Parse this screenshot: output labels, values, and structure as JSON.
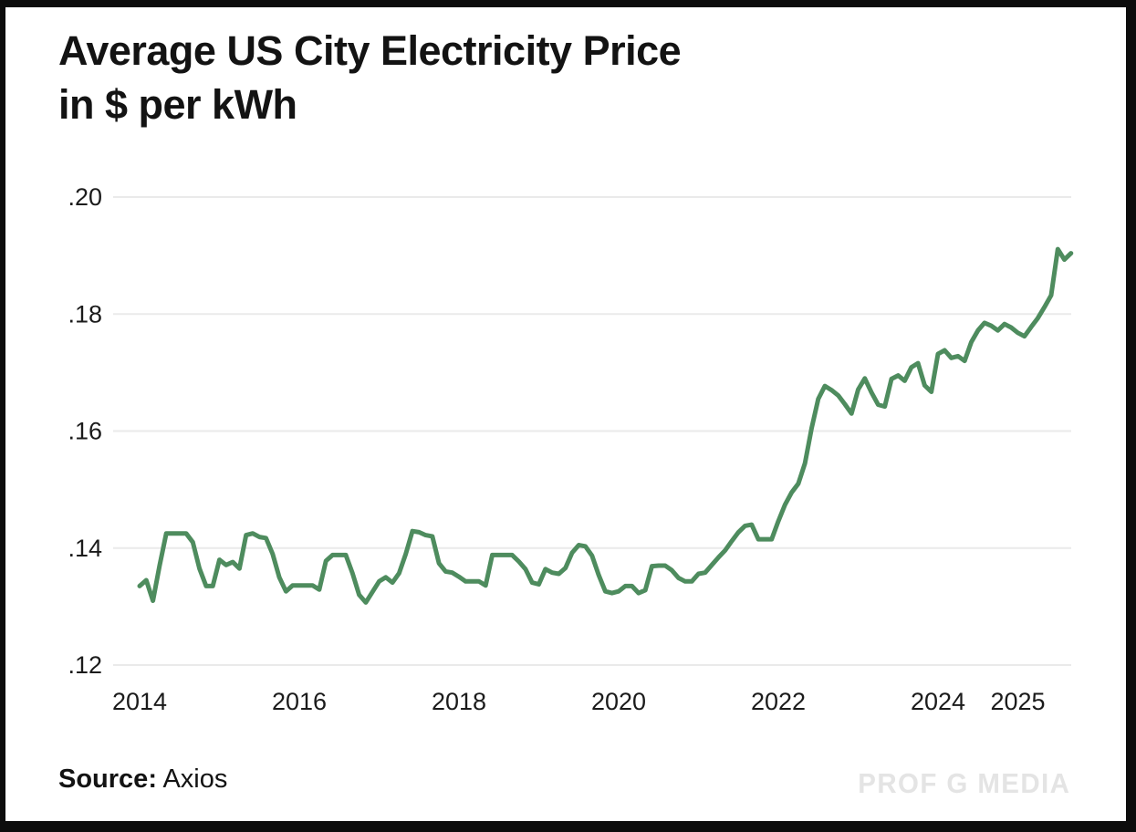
{
  "title": {
    "line1": "Average US City Electricity Price",
    "line2": "in $ per kWh"
  },
  "footer": {
    "source_label": "Source:",
    "source_value": "Axios",
    "watermark": "PROF G MEDIA"
  },
  "chart_data": {
    "type": "line",
    "title": "Average US City Electricity Price in $ per kWh",
    "unit": "USD per kWh",
    "frequency": "monthly",
    "start_month": "2014-01",
    "end_month": "2025-09",
    "grid": "horizontal",
    "legend": "none",
    "line_color": "#4e8c5e",
    "grid_color": "#eaeaea",
    "x_tick_years": [
      2014,
      2016,
      2018,
      2020,
      2022,
      2024,
      2025
    ],
    "y_ticks": [
      {
        "label": ".20",
        "value": 0.2
      },
      {
        "label": ".18",
        "value": 0.18
      },
      {
        "label": ".16",
        "value": 0.16
      },
      {
        "label": ".14",
        "value": 0.14
      },
      {
        "label": ".12",
        "value": 0.12
      }
    ],
    "ylim": [
      0.12,
      0.2
    ],
    "values": [
      0.1335,
      0.1345,
      0.131,
      0.137,
      0.1425,
      0.1425,
      0.1425,
      0.1425,
      0.141,
      0.1365,
      0.1335,
      0.1335,
      0.138,
      0.1371,
      0.1376,
      0.1365,
      0.1422,
      0.1425,
      0.1419,
      0.1417,
      0.139,
      0.135,
      0.1326,
      0.1336,
      0.1336,
      0.1336,
      0.1336,
      0.1329,
      0.1378,
      0.1388,
      0.1388,
      0.1388,
      0.1357,
      0.132,
      0.1307,
      0.1325,
      0.1343,
      0.135,
      0.1341,
      0.1357,
      0.139,
      0.1429,
      0.1427,
      0.1422,
      0.142,
      0.1374,
      0.136,
      0.1358,
      0.1351,
      0.1343,
      0.1343,
      0.1343,
      0.1336,
      0.1388,
      0.1388,
      0.1388,
      0.1388,
      0.1377,
      0.1364,
      0.1341,
      0.1338,
      0.1364,
      0.1358,
      0.1356,
      0.1366,
      0.1392,
      0.1405,
      0.1403,
      0.1387,
      0.1354,
      0.1326,
      0.1323,
      0.1326,
      0.1335,
      0.1335,
      0.1323,
      0.1328,
      0.1369,
      0.137,
      0.137,
      0.1362,
      0.1349,
      0.1343,
      0.1343,
      0.1356,
      0.1358,
      0.1371,
      0.1384,
      0.1396,
      0.1412,
      0.1427,
      0.1438,
      0.144,
      0.1415,
      0.1415,
      0.1415,
      0.1446,
      0.1474,
      0.1495,
      0.151,
      0.1545,
      0.1605,
      0.1655,
      0.1677,
      0.167,
      0.1661,
      0.1646,
      0.163,
      0.1671,
      0.169,
      0.1666,
      0.1645,
      0.1642,
      0.1689,
      0.1695,
      0.1686,
      0.1709,
      0.1716,
      0.1678,
      0.1667,
      0.1732,
      0.1738,
      0.1725,
      0.1728,
      0.172,
      0.1752,
      0.1772,
      0.1785,
      0.178,
      0.1772,
      0.1783,
      0.1777,
      0.1768,
      0.1762,
      0.1778,
      0.1793,
      0.1812,
      0.1832,
      0.1911,
      0.1893,
      0.1904
    ]
  }
}
